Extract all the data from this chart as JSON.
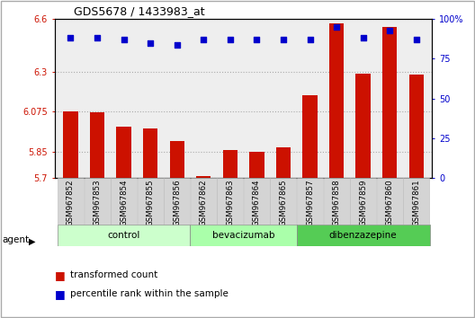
{
  "title": "GDS5678 / 1433983_at",
  "samples": [
    "GSM967852",
    "GSM967853",
    "GSM967854",
    "GSM967855",
    "GSM967856",
    "GSM967862",
    "GSM967863",
    "GSM967864",
    "GSM967865",
    "GSM967857",
    "GSM967858",
    "GSM967859",
    "GSM967860",
    "GSM967861"
  ],
  "bar_values": [
    6.075,
    6.07,
    5.99,
    5.98,
    5.91,
    5.71,
    5.86,
    5.85,
    5.875,
    6.17,
    6.575,
    6.29,
    6.555,
    6.285
  ],
  "dot_values": [
    88,
    88,
    87,
    85,
    84,
    87,
    87,
    87,
    87,
    87,
    95,
    88,
    93,
    87
  ],
  "ylim_left": [
    5.7,
    6.6
  ],
  "ylim_right": [
    0,
    100
  ],
  "yticks_left": [
    5.7,
    5.85,
    6.075,
    6.3,
    6.6
  ],
  "yticks_right": [
    0,
    25,
    50,
    75,
    100
  ],
  "bar_color": "#cc1100",
  "dot_color": "#0000cc",
  "bar_bottom": 5.7,
  "groups": [
    {
      "label": "control",
      "start": 0,
      "end": 5,
      "color": "#ccffcc"
    },
    {
      "label": "bevacizumab",
      "start": 5,
      "end": 9,
      "color": "#aaffaa"
    },
    {
      "label": "dibenzazepine",
      "start": 9,
      "end": 14,
      "color": "#55cc55"
    }
  ],
  "agent_label": "agent",
  "legend_bar_label": "transformed count",
  "legend_dot_label": "percentile rank within the sample",
  "grid_color": "#aaaaaa",
  "background_color": "#ffffff",
  "plot_bg_color": "#eeeeee",
  "tick_label_bg": "#d4d4d4"
}
